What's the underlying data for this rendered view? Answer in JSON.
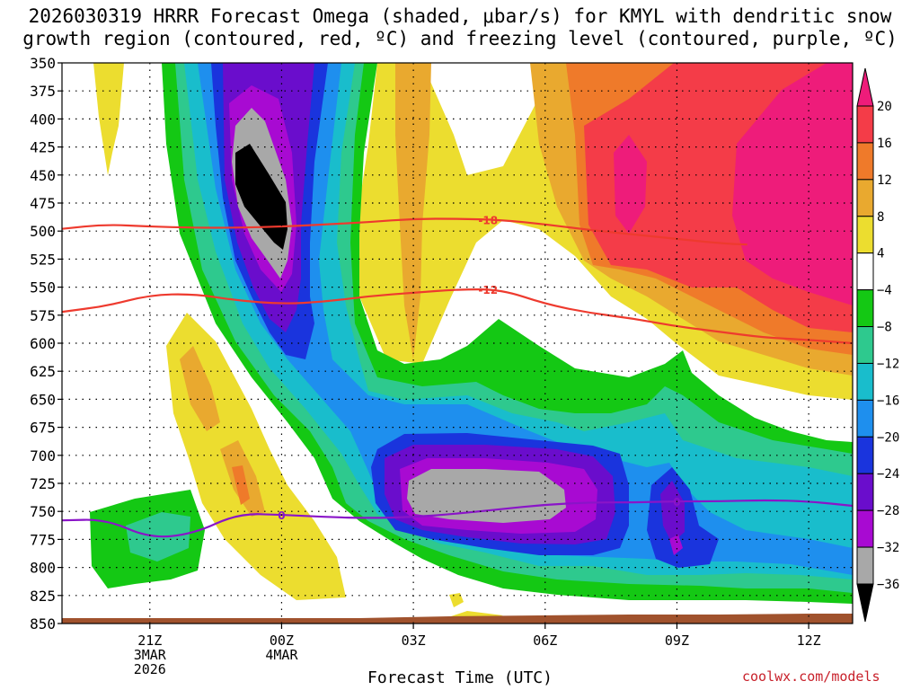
{
  "title_line1": "2026030319 HRRR Forecast Omega (shaded, μbar/s) for KMYL with dendritic snow",
  "title_line2": "growth region (contoured, red, ºC) and freezing level (contoured, purple, ºC)",
  "credit": "coolwx.com/models",
  "chart_data": {
    "type": "heatmap",
    "xlabel": "Forecast Time (UTC)",
    "x_ticks": [
      {
        "label": [
          "21Z",
          "3MAR",
          "2026"
        ],
        "hour": 2
      },
      {
        "label": [
          "00Z",
          "4MAR"
        ],
        "hour": 5
      },
      {
        "label": [
          "03Z"
        ],
        "hour": 8
      },
      {
        "label": [
          "06Z"
        ],
        "hour": 11
      },
      {
        "label": [
          "09Z"
        ],
        "hour": 14
      },
      {
        "label": [
          "12Z"
        ],
        "hour": 17
      }
    ],
    "x_range_hours": [
      0,
      18
    ],
    "y_ticks": [
      350,
      375,
      400,
      425,
      450,
      475,
      500,
      525,
      550,
      575,
      600,
      625,
      650,
      675,
      700,
      725,
      750,
      775,
      800,
      825,
      850
    ],
    "ylim": [
      350,
      850
    ],
    "colorbar": {
      "labels": [
        "20",
        "16",
        "12",
        "8",
        "4",
        "−4",
        "−8",
        "−12",
        "−16",
        "−20",
        "−24",
        "−28",
        "−32",
        "−36"
      ],
      "colors": [
        "#ee1c7a",
        "#f43c48",
        "#ef7a2a",
        "#e9a92f",
        "#ecdd2f",
        "#ffffff",
        "#14c814",
        "#2ec98e",
        "#19bdcc",
        "#1e8fee",
        "#1a34dd",
        "#6a0dcc",
        "#a80ad2",
        "#a8a8a8",
        "#000000"
      ]
    },
    "contours": [
      {
        "label": "-18",
        "color": "#ee3a2e",
        "points": [
          [
            0,
            498
          ],
          [
            1,
            494
          ],
          [
            2,
            496
          ],
          [
            3,
            497
          ],
          [
            4,
            497
          ],
          [
            5,
            496
          ],
          [
            6,
            494
          ],
          [
            7,
            492
          ],
          [
            8,
            489
          ],
          [
            9,
            489
          ],
          [
            10,
            490
          ],
          [
            11,
            494
          ],
          [
            12,
            499
          ],
          [
            13,
            503
          ],
          [
            14,
            507
          ],
          [
            15,
            511
          ],
          [
            15.6,
            512
          ]
        ]
      },
      {
        "label": "-12",
        "color": "#ee3a2e",
        "points": [
          [
            0,
            572
          ],
          [
            1,
            567
          ],
          [
            2,
            557
          ],
          [
            3,
            556
          ],
          [
            4,
            562
          ],
          [
            5,
            565
          ],
          [
            6,
            563
          ],
          [
            7,
            558
          ],
          [
            8,
            555
          ],
          [
            9,
            552
          ],
          [
            10,
            552
          ],
          [
            11,
            565
          ],
          [
            12,
            573
          ],
          [
            13,
            578
          ],
          [
            14,
            585
          ],
          [
            15,
            590
          ],
          [
            16,
            595
          ],
          [
            17,
            597
          ],
          [
            18,
            600
          ]
        ]
      },
      {
        "label": "0",
        "color": "#8a14c8",
        "points": [
          [
            0,
            758
          ],
          [
            1,
            757
          ],
          [
            2,
            774
          ],
          [
            3,
            770
          ],
          [
            4,
            752
          ],
          [
            5,
            753
          ],
          [
            6,
            755
          ],
          [
            7,
            756
          ],
          [
            8,
            755
          ],
          [
            9,
            752
          ],
          [
            10,
            748
          ],
          [
            11,
            744
          ],
          [
            12,
            742
          ],
          [
            13,
            742
          ],
          [
            14,
            741
          ],
          [
            15,
            741
          ],
          [
            16,
            740
          ],
          [
            17,
            741
          ],
          [
            18,
            745
          ]
        ]
      }
    ]
  }
}
